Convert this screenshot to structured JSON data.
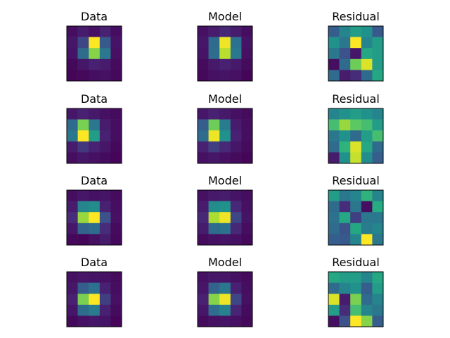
{
  "chart_data": {
    "type": "heatmap",
    "colormap": "viridis",
    "value_range": [
      0,
      1
    ],
    "grid": false,
    "axes_ticks": false,
    "rows": [
      {
        "panels": [
          {
            "title": "Data",
            "values": [
              [
                0.05,
                0.1,
                0.06,
                0.12,
                0.05
              ],
              [
                0.08,
                0.22,
                1.0,
                0.28,
                0.07
              ],
              [
                0.07,
                0.35,
                0.82,
                0.4,
                0.06
              ],
              [
                0.03,
                0.08,
                0.12,
                0.1,
                0.04
              ],
              [
                0.02,
                0.03,
                0.05,
                0.06,
                0.03
              ]
            ]
          },
          {
            "title": "Model",
            "values": [
              [
                0.06,
                0.1,
                0.14,
                0.1,
                0.05
              ],
              [
                0.08,
                0.35,
                0.98,
                0.38,
                0.07
              ],
              [
                0.07,
                0.36,
                0.9,
                0.4,
                0.06
              ],
              [
                0.04,
                0.09,
                0.12,
                0.09,
                0.04
              ],
              [
                0.03,
                0.06,
                0.07,
                0.06,
                0.02
              ]
            ]
          },
          {
            "title": "Residual",
            "values": [
              [
                0.3,
                0.45,
                0.55,
                0.5,
                0.28
              ],
              [
                0.5,
                0.4,
                1.0,
                0.45,
                0.55
              ],
              [
                0.4,
                0.25,
                0.08,
                0.6,
                0.55
              ],
              [
                0.05,
                0.35,
                0.78,
                0.95,
                0.55
              ],
              [
                0.35,
                0.1,
                0.15,
                0.35,
                0.6
              ]
            ]
          }
        ]
      },
      {
        "panels": [
          {
            "title": "Data",
            "values": [
              [
                0.08,
                0.12,
                0.09,
                0.06,
                0.04
              ],
              [
                0.35,
                0.8,
                0.4,
                0.1,
                0.05
              ],
              [
                0.4,
                1.0,
                0.55,
                0.12,
                0.05
              ],
              [
                0.1,
                0.18,
                0.12,
                0.08,
                0.03
              ],
              [
                0.05,
                0.08,
                0.06,
                0.04,
                0.02
              ]
            ]
          },
          {
            "title": "Model",
            "values": [
              [
                0.08,
                0.12,
                0.09,
                0.06,
                0.04
              ],
              [
                0.3,
                0.78,
                0.42,
                0.1,
                0.05
              ],
              [
                0.35,
                0.98,
                0.5,
                0.12,
                0.05
              ],
              [
                0.12,
                0.2,
                0.14,
                0.08,
                0.04
              ],
              [
                0.06,
                0.08,
                0.06,
                0.04,
                0.02
              ]
            ]
          },
          {
            "title": "Residual",
            "values": [
              [
                0.45,
                0.5,
                0.55,
                0.5,
                0.45
              ],
              [
                0.7,
                0.85,
                0.75,
                0.7,
                0.55
              ],
              [
                0.4,
                0.5,
                0.35,
                0.55,
                0.7
              ],
              [
                0.35,
                0.65,
                0.95,
                0.6,
                0.35
              ],
              [
                0.1,
                0.5,
                0.92,
                0.48,
                0.3
              ]
            ]
          }
        ]
      },
      {
        "panels": [
          {
            "title": "Data",
            "values": [
              [
                0.05,
                0.08,
                0.06,
                0.07,
                0.04
              ],
              [
                0.1,
                0.45,
                0.48,
                0.12,
                0.05
              ],
              [
                0.15,
                0.85,
                1.0,
                0.25,
                0.06
              ],
              [
                0.08,
                0.32,
                0.35,
                0.15,
                0.04
              ],
              [
                0.03,
                0.02,
                0.06,
                0.1,
                0.03
              ]
            ]
          },
          {
            "title": "Model",
            "values": [
              [
                0.06,
                0.09,
                0.1,
                0.07,
                0.05
              ],
              [
                0.1,
                0.48,
                0.5,
                0.14,
                0.06
              ],
              [
                0.14,
                0.88,
                0.98,
                0.22,
                0.07
              ],
              [
                0.1,
                0.35,
                0.38,
                0.14,
                0.05
              ],
              [
                0.04,
                0.06,
                0.07,
                0.06,
                0.03
              ]
            ]
          },
          {
            "title": "Residual",
            "values": [
              [
                0.55,
                0.4,
                0.45,
                0.65,
                0.45
              ],
              [
                0.35,
                0.15,
                0.4,
                0.05,
                0.62
              ],
              [
                0.38,
                0.6,
                0.2,
                0.4,
                0.4
              ],
              [
                0.35,
                0.25,
                0.6,
                0.42,
                0.45
              ],
              [
                0.3,
                0.28,
                0.45,
                1.0,
                0.4
              ]
            ]
          }
        ]
      },
      {
        "panels": [
          {
            "title": "Data",
            "values": [
              [
                0.06,
                0.08,
                0.07,
                0.06,
                0.04
              ],
              [
                0.08,
                0.3,
                0.38,
                0.12,
                0.05
              ],
              [
                0.12,
                0.8,
                1.0,
                0.2,
                0.06
              ],
              [
                0.08,
                0.35,
                0.42,
                0.12,
                0.04
              ],
              [
                0.03,
                0.06,
                0.08,
                0.07,
                0.02
              ]
            ]
          },
          {
            "title": "Model",
            "values": [
              [
                0.06,
                0.08,
                0.08,
                0.06,
                0.04
              ],
              [
                0.08,
                0.32,
                0.4,
                0.12,
                0.05
              ],
              [
                0.12,
                0.82,
                0.98,
                0.22,
                0.06
              ],
              [
                0.08,
                0.36,
                0.44,
                0.13,
                0.04
              ],
              [
                0.04,
                0.06,
                0.07,
                0.06,
                0.03
              ]
            ]
          },
          {
            "title": "Residual",
            "values": [
              [
                0.6,
                0.55,
                0.55,
                0.45,
                0.6
              ],
              [
                0.35,
                0.45,
                0.5,
                0.3,
                0.55
              ],
              [
                0.95,
                0.1,
                0.8,
                0.35,
                0.45
              ],
              [
                0.55,
                0.15,
                0.7,
                0.45,
                0.4
              ],
              [
                0.05,
                0.25,
                1.0,
                0.82,
                0.3
              ]
            ]
          }
        ]
      }
    ]
  }
}
